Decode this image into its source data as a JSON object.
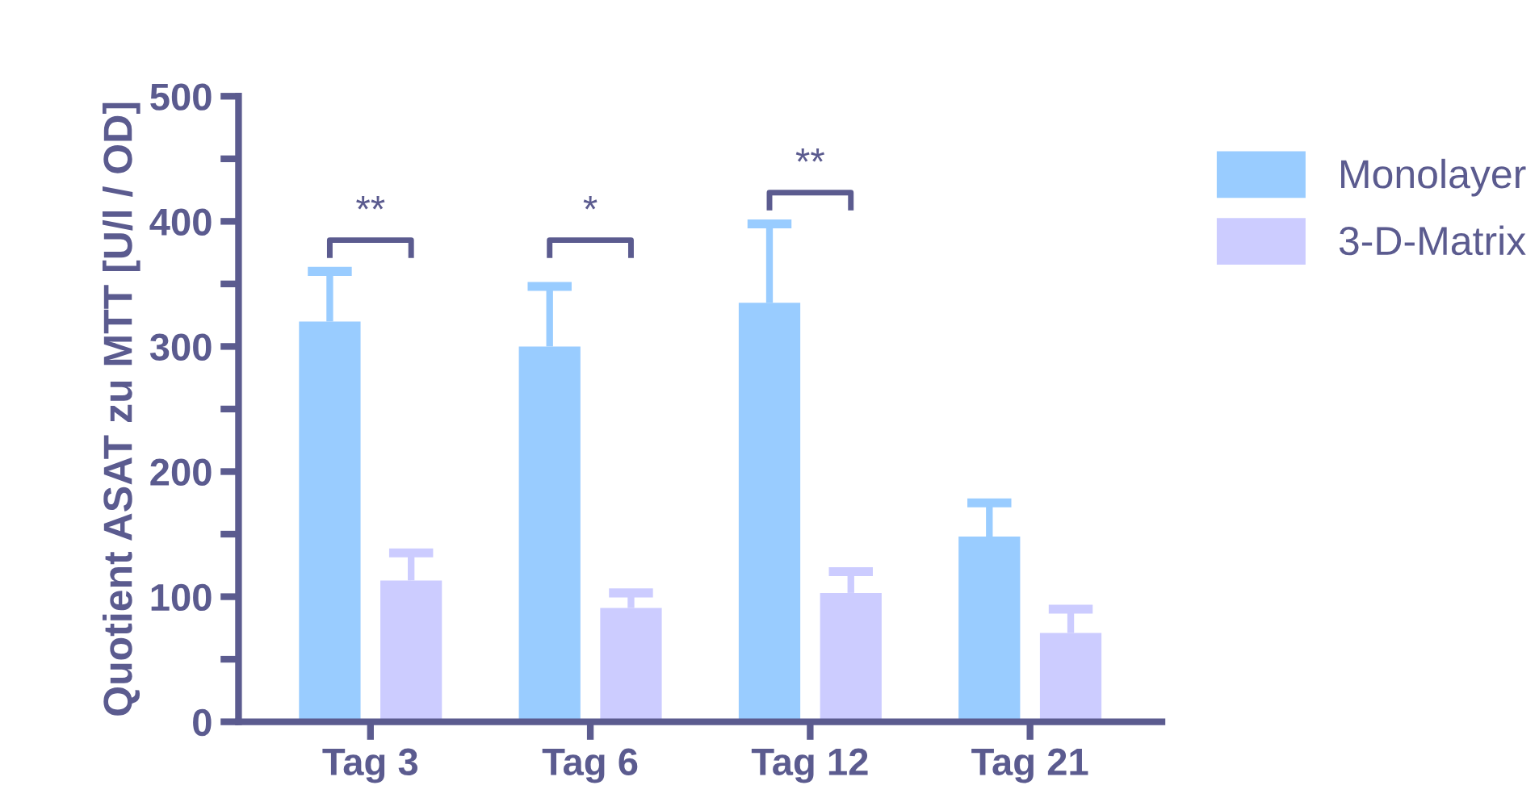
{
  "chart_data": {
    "type": "bar",
    "ylabel": "Quotient ASAT zu MTT [U/l / OD]",
    "categories": [
      "Tag 3",
      "Tag 6",
      "Tag 12",
      "Tag 21"
    ],
    "series": [
      {
        "name": "Monolayer",
        "color": "#99ccff",
        "values": [
          320,
          300,
          335,
          148
        ],
        "errors": [
          [
            320,
            360
          ],
          [
            300,
            348
          ],
          [
            335,
            398
          ],
          [
            148,
            175
          ]
        ]
      },
      {
        "name": "3-D-Matrix",
        "color": "#ccccff",
        "values": [
          113,
          91,
          103,
          71
        ],
        "errors": [
          [
            113,
            135
          ],
          [
            91,
            103
          ],
          [
            103,
            120
          ],
          [
            71,
            90
          ]
        ]
      }
    ],
    "ylim": [
      0,
      500
    ],
    "yticks": [
      0,
      {
        "value": 50,
        "label": null
      },
      100,
      {
        "value": 150,
        "label": null
      },
      200,
      {
        "value": 250,
        "label": null
      },
      300,
      {
        "value": 350,
        "label": null
      },
      400,
      {
        "value": 450,
        "label": null
      },
      500
    ],
    "annotations": [
      "**",
      "*",
      "**"
    ],
    "legend": "right",
    "grid": false
  }
}
